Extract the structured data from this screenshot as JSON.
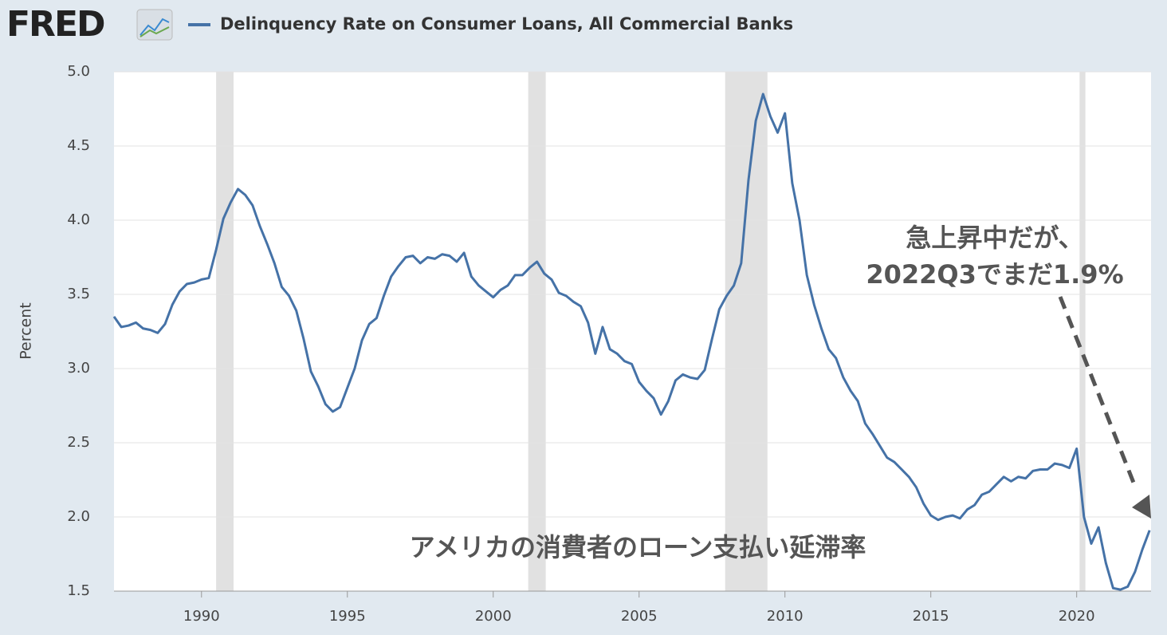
{
  "logo": "FRED",
  "chart_data": {
    "type": "line",
    "y_label": "Percent",
    "x": [
      1987,
      1987.25,
      1987.5,
      1987.75,
      1988,
      1988.25,
      1988.5,
      1988.75,
      1989,
      1989.25,
      1989.5,
      1989.75,
      1990,
      1990.25,
      1990.5,
      1990.75,
      1991,
      1991.25,
      1991.5,
      1991.75,
      1992,
      1992.25,
      1992.5,
      1992.75,
      1993,
      1993.25,
      1993.5,
      1993.75,
      1994,
      1994.25,
      1994.5,
      1994.75,
      1995,
      1995.25,
      1995.5,
      1995.75,
      1996,
      1996.25,
      1996.5,
      1996.75,
      1997,
      1997.25,
      1997.5,
      1997.75,
      1998,
      1998.25,
      1998.5,
      1998.75,
      1999,
      1999.25,
      1999.5,
      1999.75,
      2000,
      2000.25,
      2000.5,
      2000.75,
      2001,
      2001.25,
      2001.5,
      2001.75,
      2002,
      2002.25,
      2002.5,
      2002.75,
      2003,
      2003.25,
      2003.5,
      2003.75,
      2004,
      2004.25,
      2004.5,
      2004.75,
      2005,
      2005.25,
      2005.5,
      2005.75,
      2006,
      2006.25,
      2006.5,
      2006.75,
      2007,
      2007.25,
      2007.5,
      2007.75,
      2008,
      2008.25,
      2008.5,
      2008.75,
      2009,
      2009.25,
      2009.5,
      2009.75,
      2010,
      2010.25,
      2010.5,
      2010.75,
      2011,
      2011.25,
      2011.5,
      2011.75,
      2012,
      2012.25,
      2012.5,
      2012.75,
      2013,
      2013.25,
      2013.5,
      2013.75,
      2014,
      2014.25,
      2014.5,
      2014.75,
      2015,
      2015.25,
      2015.5,
      2015.75,
      2016,
      2016.25,
      2016.5,
      2016.75,
      2017,
      2017.25,
      2017.5,
      2017.75,
      2018,
      2018.25,
      2018.5,
      2018.75,
      2019,
      2019.25,
      2019.5,
      2019.75,
      2020,
      2020.25,
      2020.5,
      2020.75,
      2021,
      2021.25,
      2021.5,
      2021.75,
      2022,
      2022.25,
      2022.5
    ],
    "series": [
      {
        "name": "Delinquency Rate on Consumer Loans, All Commercial Banks",
        "color": "#4572a7",
        "values": [
          3.35,
          3.28,
          3.29,
          3.31,
          3.27,
          3.26,
          3.24,
          3.3,
          3.43,
          3.52,
          3.57,
          3.58,
          3.6,
          3.61,
          3.8,
          4.01,
          4.12,
          4.21,
          4.17,
          4.1,
          3.96,
          3.84,
          3.71,
          3.55,
          3.49,
          3.39,
          3.2,
          2.98,
          2.88,
          2.76,
          2.71,
          2.74,
          2.87,
          3.0,
          3.19,
          3.3,
          3.34,
          3.49,
          3.62,
          3.69,
          3.75,
          3.76,
          3.71,
          3.75,
          3.74,
          3.77,
          3.76,
          3.72,
          3.78,
          3.62,
          3.56,
          3.52,
          3.48,
          3.53,
          3.56,
          3.63,
          3.63,
          3.68,
          3.72,
          3.64,
          3.6,
          3.51,
          3.49,
          3.45,
          3.42,
          3.31,
          3.1,
          3.28,
          3.13,
          3.1,
          3.05,
          3.03,
          2.91,
          2.85,
          2.8,
          2.69,
          2.78,
          2.92,
          2.96,
          2.94,
          2.93,
          2.99,
          3.2,
          3.4,
          3.49,
          3.56,
          3.71,
          4.27,
          4.67,
          4.85,
          4.7,
          4.59,
          4.72,
          4.25,
          4.0,
          3.63,
          3.43,
          3.27,
          3.13,
          3.07,
          2.94,
          2.85,
          2.78,
          2.63,
          2.56,
          2.48,
          2.4,
          2.37,
          2.32,
          2.27,
          2.2,
          2.09,
          2.01,
          1.98,
          2.0,
          2.01,
          1.99,
          2.05,
          2.08,
          2.15,
          2.17,
          2.22,
          2.27,
          2.24,
          2.27,
          2.26,
          2.31,
          2.32,
          2.32,
          2.36,
          2.35,
          2.33,
          2.46,
          2.0,
          1.82,
          1.93,
          1.69,
          1.52,
          1.51,
          1.53,
          1.63,
          1.78,
          1.91
        ]
      }
    ],
    "recessions": [
      [
        1990.5,
        1991.1
      ],
      [
        2001.2,
        2001.8
      ],
      [
        2007.95,
        2009.4
      ],
      [
        2020.1,
        2020.3
      ]
    ],
    "xlim": [
      1987,
      2022.55
    ],
    "xticks": [
      1990,
      1995,
      2000,
      2005,
      2010,
      2015,
      2020
    ],
    "ylim": [
      1.5,
      5
    ],
    "yticks": [
      1.5,
      {
        "value": 2,
        "label": "2.0"
      },
      2.5,
      {
        "value": 3,
        "label": "3.0"
      },
      3.5,
      {
        "value": 4,
        "label": "4.0"
      },
      4.5,
      {
        "value": 5,
        "label": "5.0"
      }
    ],
    "grid": true,
    "annotations": [
      "急上昇中だが、",
      "2022Q3でまだ1.9%",
      "アメリカの消費者のローン支払い延滞率"
    ]
  }
}
